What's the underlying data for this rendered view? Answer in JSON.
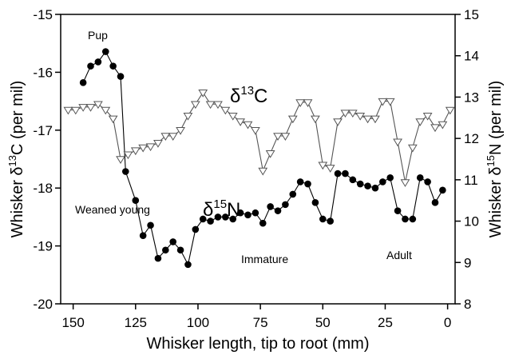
{
  "chart_data": {
    "type": "line",
    "xlabel": "Whisker length, tip to root (mm)",
    "ylabel_left": {
      "prefix": "Whisker δ",
      "sup": "13",
      "suffix": "C (per mil)"
    },
    "ylabel_right": {
      "prefix": "Whisker δ",
      "sup": "15",
      "suffix": "N (per mil)"
    },
    "xlim": [
      155,
      -3
    ],
    "ylim_left": [
      -20,
      -15
    ],
    "ylim_right": [
      8,
      15
    ],
    "x_ticks": [
      150,
      125,
      100,
      75,
      50,
      25,
      0
    ],
    "y_left_ticks": [
      -15,
      -16,
      -17,
      -18,
      -19,
      -20
    ],
    "y_right_ticks": [
      8,
      9,
      10,
      11,
      12,
      13,
      14,
      15
    ],
    "series": [
      {
        "axis": "left",
        "label_parts": {
          "delta": "δ",
          "sup": "13",
          "element": "C"
        },
        "marker": "open-triangle-down",
        "color": "#000000",
        "points": [
          [
            152,
            -16.65
          ],
          [
            149,
            -16.65
          ],
          [
            146,
            -16.6
          ],
          [
            143,
            -16.6
          ],
          [
            140,
            -16.55
          ],
          [
            137,
            -16.65
          ],
          [
            134,
            -16.8
          ],
          [
            131,
            -17.5
          ],
          [
            128,
            -17.42
          ],
          [
            125,
            -17.35
          ],
          [
            122,
            -17.3
          ],
          [
            119,
            -17.28
          ],
          [
            116,
            -17.22
          ],
          [
            113,
            -17.1
          ],
          [
            110,
            -17.1
          ],
          [
            107,
            -17.0
          ],
          [
            104,
            -16.75
          ],
          [
            101,
            -16.55
          ],
          [
            98,
            -16.35
          ],
          [
            95,
            -16.55
          ],
          [
            92,
            -16.55
          ],
          [
            89,
            -16.65
          ],
          [
            86,
            -16.75
          ],
          [
            83,
            -16.85
          ],
          [
            80,
            -16.9
          ],
          [
            77,
            -17.0
          ],
          [
            74,
            -17.7
          ],
          [
            71,
            -17.4
          ],
          [
            68,
            -17.1
          ],
          [
            65,
            -17.1
          ],
          [
            62,
            -16.8
          ],
          [
            59,
            -16.52
          ],
          [
            56,
            -16.52
          ],
          [
            53,
            -16.8
          ],
          [
            50,
            -17.6
          ],
          [
            47,
            -17.65
          ],
          [
            44,
            -16.85
          ],
          [
            41,
            -16.7
          ],
          [
            38,
            -16.7
          ],
          [
            35,
            -16.75
          ],
          [
            32,
            -16.8
          ],
          [
            29,
            -16.8
          ],
          [
            26,
            -16.5
          ],
          [
            23,
            -16.5
          ],
          [
            20,
            -17.2
          ],
          [
            17,
            -17.9
          ],
          [
            14,
            -17.3
          ],
          [
            11,
            -16.85
          ],
          [
            8,
            -16.75
          ],
          [
            5,
            -16.95
          ],
          [
            2,
            -16.9
          ],
          [
            -1,
            -16.65
          ]
        ]
      },
      {
        "axis": "right",
        "label_parts": {
          "delta": "δ",
          "sup": "15",
          "element": "N"
        },
        "marker": "filled-circle",
        "color": "#000000",
        "points": [
          [
            146,
            13.35
          ],
          [
            143,
            13.75
          ],
          [
            140,
            13.85
          ],
          [
            137,
            14.1
          ],
          [
            134,
            13.75
          ],
          [
            131,
            13.5
          ],
          [
            129,
            11.2
          ],
          [
            125,
            10.5
          ],
          [
            122,
            9.65
          ],
          [
            119,
            9.9
          ],
          [
            116,
            9.1
          ],
          [
            113,
            9.3
          ],
          [
            110,
            9.5
          ],
          [
            107,
            9.3
          ],
          [
            104,
            8.95
          ],
          [
            101,
            9.8
          ],
          [
            98,
            10.05
          ],
          [
            95,
            10.0
          ],
          [
            92,
            10.1
          ],
          [
            89,
            10.1
          ],
          [
            86,
            10.05
          ],
          [
            83,
            10.2
          ],
          [
            80,
            10.15
          ],
          [
            77,
            10.2
          ],
          [
            74,
            9.95
          ],
          [
            71,
            10.35
          ],
          [
            68,
            10.25
          ],
          [
            65,
            10.4
          ],
          [
            62,
            10.65
          ],
          [
            59,
            10.95
          ],
          [
            56,
            10.9
          ],
          [
            53,
            10.45
          ],
          [
            50,
            10.05
          ],
          [
            47,
            10.0
          ],
          [
            44,
            11.15
          ],
          [
            41,
            11.15
          ],
          [
            38,
            11.0
          ],
          [
            35,
            10.9
          ],
          [
            32,
            10.85
          ],
          [
            29,
            10.8
          ],
          [
            26,
            10.95
          ],
          [
            23,
            11.05
          ],
          [
            20,
            10.25
          ],
          [
            17,
            10.05
          ],
          [
            14,
            10.05
          ],
          [
            11,
            11.05
          ],
          [
            8,
            10.95
          ],
          [
            5,
            10.45
          ],
          [
            2,
            10.75
          ]
        ]
      }
    ],
    "annotations": [
      "Pup",
      "Weaned young",
      "Immature",
      "Adult"
    ]
  }
}
